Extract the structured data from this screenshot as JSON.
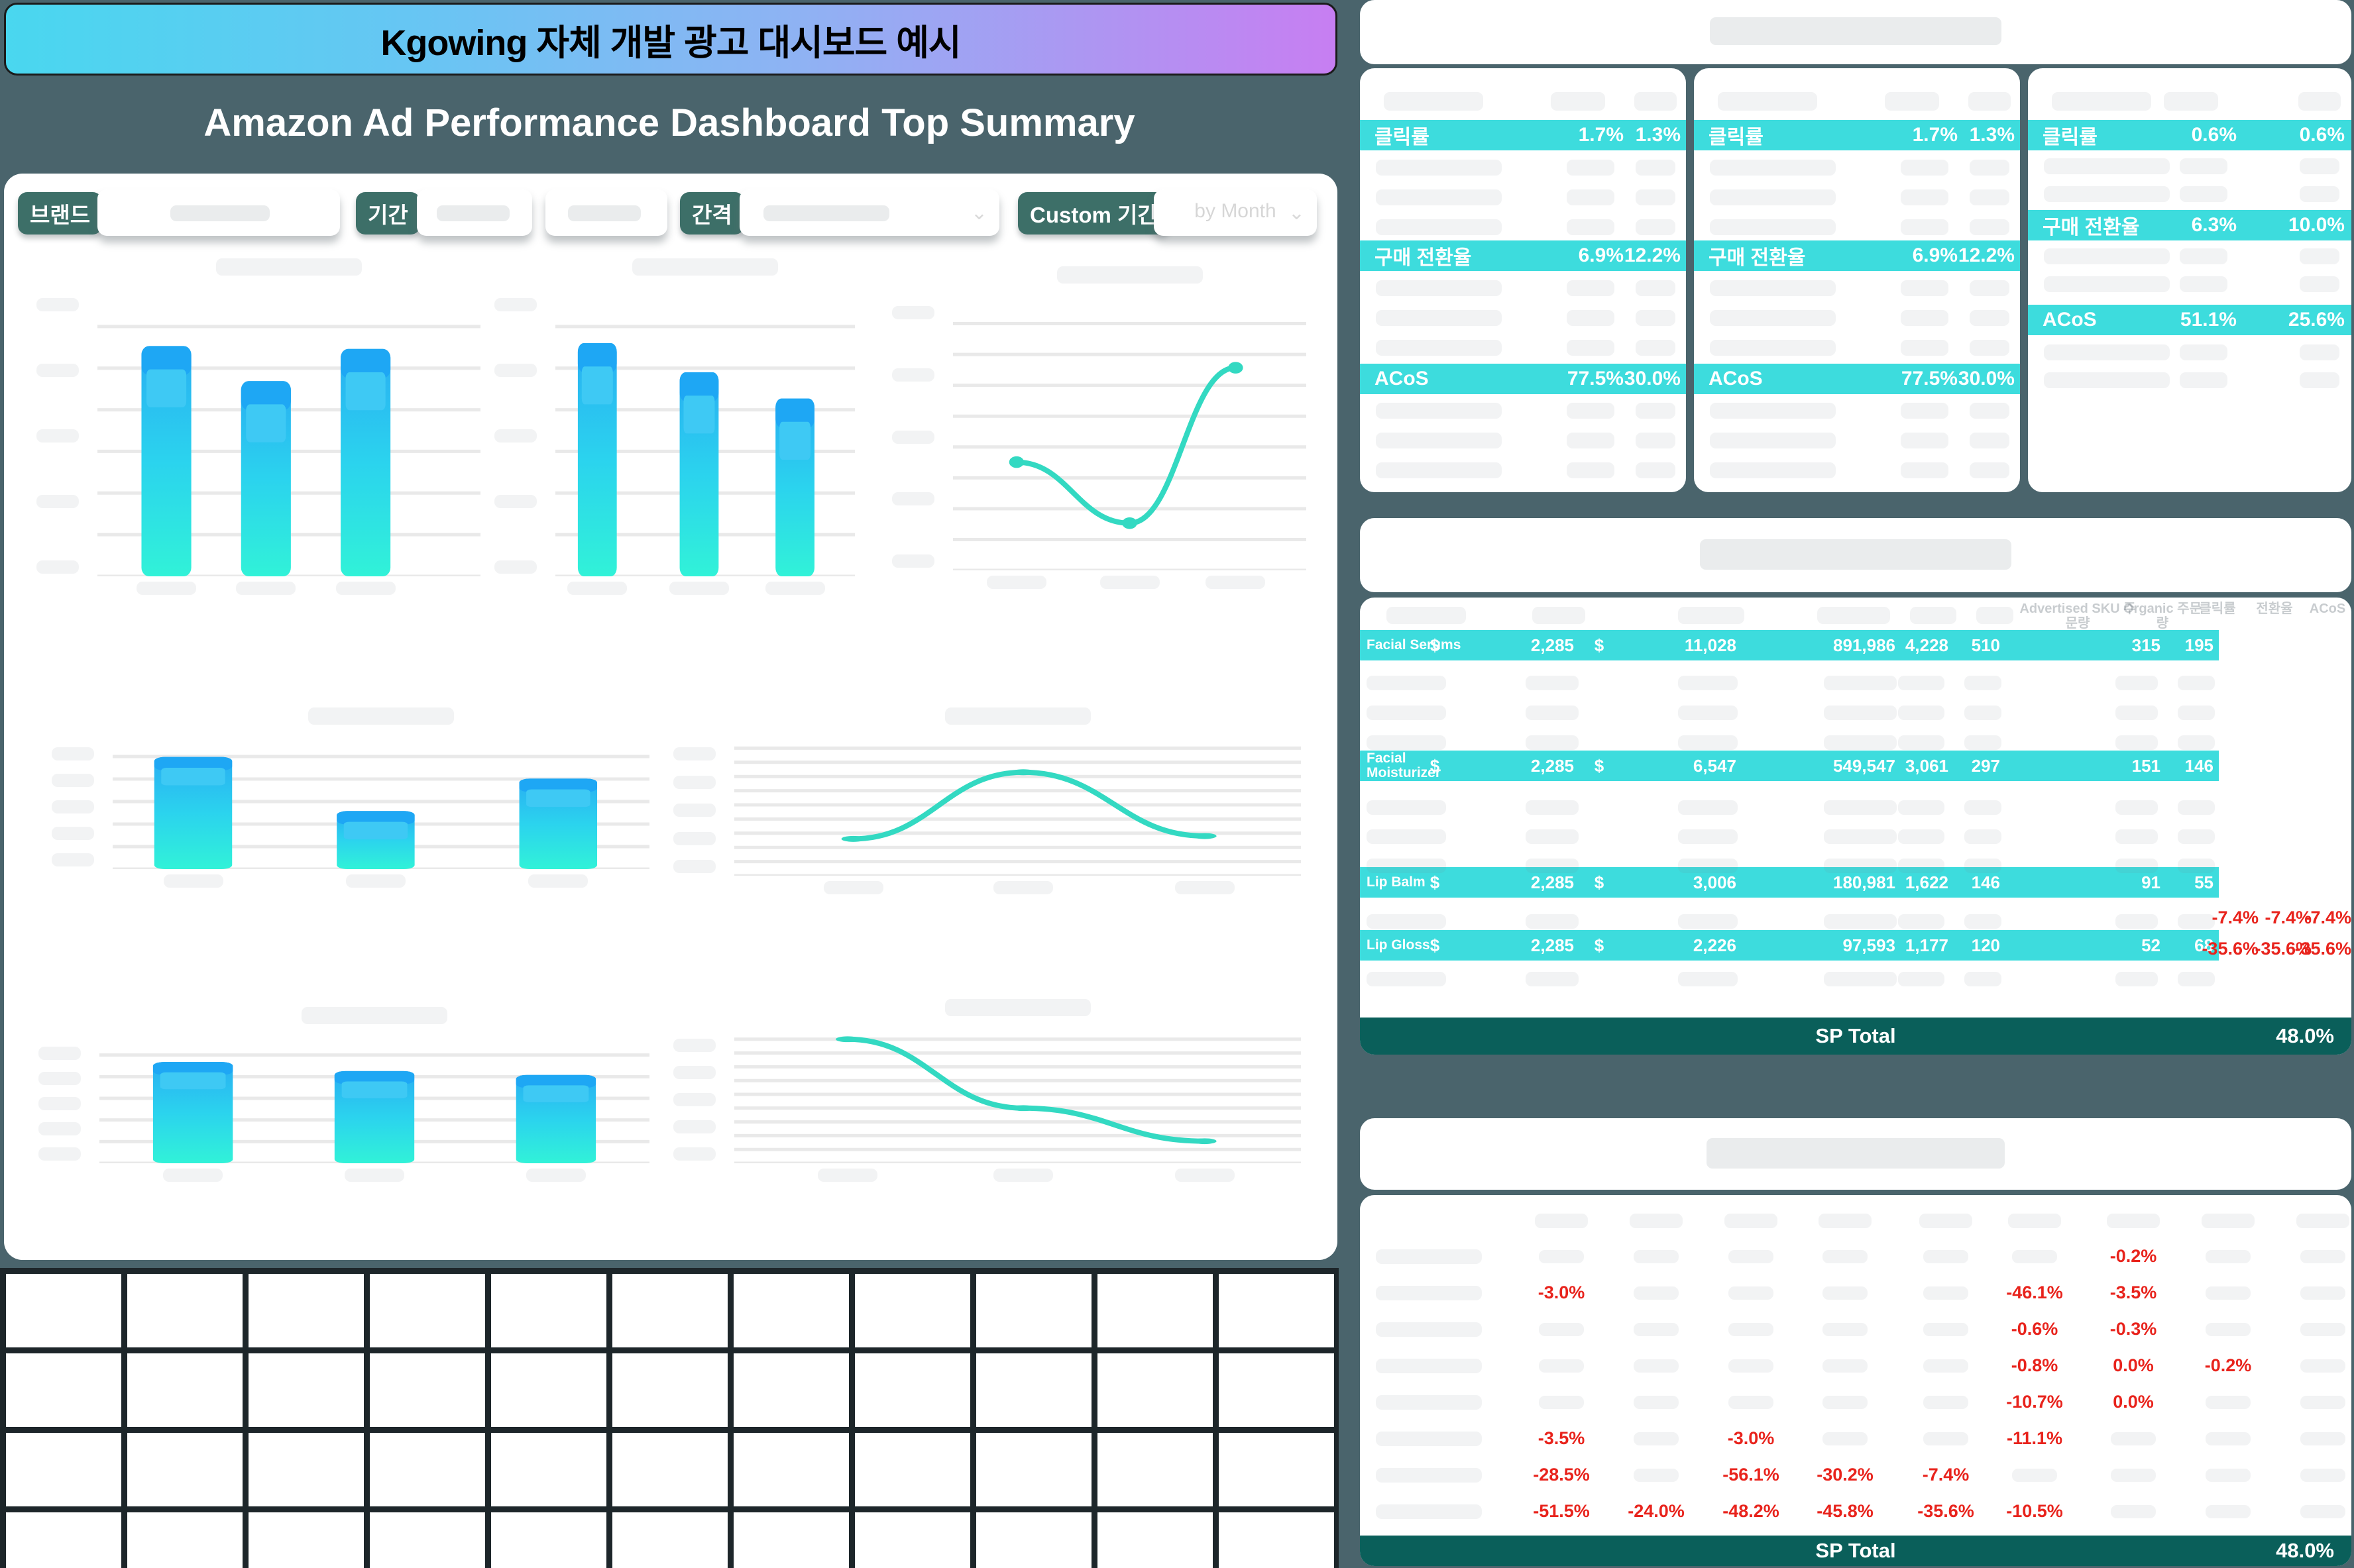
{
  "banner": {
    "title": "Kgowing 자체 개발 광고 대시보드 예시"
  },
  "header": {
    "subtitle": "Amazon Ad Performance Dashboard Top Summary"
  },
  "filters": {
    "brand_label": "브랜드",
    "period_label": "기간",
    "interval_label": "간격",
    "custom_period_label": "Custom 기간",
    "custom_period_value": "by Month"
  },
  "colors": {
    "accent_teal": "#3ddcdd",
    "dark_teal": "#0a5f5a",
    "red": "#e8231c",
    "chip_green": "#3d6f68",
    "bar_top": "#2aaef2",
    "bar_mid": "#2bd3ee",
    "bar_bottom": "#31f2d8",
    "bar_cap": "#1ea7f4",
    "bar_window": "#3ec9f4",
    "line": "#33d9c2",
    "gridline": "#e9e9e9"
  },
  "summary_section": {
    "cards": [
      {
        "metrics": [
          {
            "label": "클릭률",
            "current": "1.7%",
            "benchmark": "1.3%"
          },
          {
            "label": "구매 전환율",
            "current": "6.9%",
            "benchmark": "12.2%"
          },
          {
            "label": "ACoS",
            "current": "77.5%",
            "benchmark": "30.0%"
          }
        ]
      },
      {
        "metrics": [
          {
            "label": "클릭률",
            "current": "1.7%",
            "benchmark": "1.3%"
          },
          {
            "label": "구매 전환율",
            "current": "6.9%",
            "benchmark": "12.2%"
          },
          {
            "label": "ACoS",
            "current": "77.5%",
            "benchmark": "30.0%"
          }
        ]
      },
      {
        "metrics": [
          {
            "label": "클릭률",
            "current": "0.6%",
            "benchmark": "0.6%"
          },
          {
            "label": "구매 전환율",
            "current": "6.3%",
            "benchmark": "10.0%"
          },
          {
            "label": "ACoS",
            "current": "51.1%",
            "benchmark": "25.6%"
          }
        ]
      }
    ]
  },
  "sku_table": {
    "faint_headers": [
      "Advertised SKU 주문량",
      "Organic 주문량",
      "클릭률",
      "전환율",
      "ACoS"
    ],
    "currency": "$",
    "rows": [
      {
        "name": "Facial Serums",
        "spend": "2,285",
        "sales": "11,028",
        "impressions": "891,986",
        "clicks": "4,228",
        "orders": "510",
        "adv_sku_orders": "315",
        "organic_orders": "195"
      },
      {
        "name": "Facial Moisturizer",
        "spend": "2,285",
        "sales": "6,547",
        "impressions": "549,547",
        "clicks": "3,061",
        "orders": "297",
        "adv_sku_orders": "151",
        "organic_orders": "146"
      },
      {
        "name": "Lip Balm",
        "spend": "2,285",
        "sales": "3,006",
        "impressions": "180,981",
        "clicks": "1,622",
        "orders": "146",
        "adv_sku_orders": "91",
        "organic_orders": "55"
      },
      {
        "name": "Lip Gloss",
        "spend": "2,285",
        "sales": "2,226",
        "impressions": "97,593",
        "clicks": "1,177",
        "orders": "120",
        "adv_sku_orders": "52",
        "organic_orders": "68"
      }
    ],
    "red_change_rows": [
      {
        "values": [
          "-7.4%",
          "-7.4%",
          "-7.4%"
        ]
      },
      {
        "values": [
          "-35.6%",
          "-35.6%",
          "-35.6%"
        ]
      }
    ],
    "total_label": "SP Total",
    "total_value": "48.0%"
  },
  "yoy_table": {
    "rows": [
      {
        "cells": {
          "6": "-0.2%"
        }
      },
      {
        "cells": {
          "0": "-3.0%",
          "5": "-46.1%",
          "6": "-3.5%"
        }
      },
      {
        "cells": {
          "5": "-0.6%",
          "6": "-0.3%"
        }
      },
      {
        "cells": {
          "5": "-0.8%",
          "6": "0.0%",
          "7": "-0.2%"
        }
      },
      {
        "cells": {
          "5": "-10.7%",
          "6": "0.0%"
        }
      },
      {
        "cells": {
          "0": "-3.5%",
          "2": "-3.0%",
          "5": "-11.1%"
        }
      },
      {
        "cells": {
          "0": "-28.5%",
          "2": "-56.1%",
          "3": "-30.2%",
          "4": "-7.4%"
        }
      },
      {
        "cells": {
          "0": "-51.5%",
          "1": "-24.0%",
          "2": "-48.2%",
          "3": "-45.8%",
          "4": "-35.6%",
          "5": "-10.5%"
        }
      }
    ],
    "total_label": "SP Total",
    "total_value": "48.0%"
  },
  "chart_data": [
    {
      "id": "bar-top-left",
      "type": "bar",
      "values": [
        79,
        67,
        78
      ],
      "values_unit": "relative-height-percent",
      "categories": [
        "",
        "",
        ""
      ]
    },
    {
      "id": "bar-top-mid",
      "type": "bar",
      "values": [
        80,
        70,
        61
      ],
      "values_unit": "relative-height-percent",
      "categories": [
        "",
        "",
        ""
      ]
    },
    {
      "id": "line-top-right",
      "type": "line",
      "values": [
        39,
        17,
        73
      ],
      "values_unit": "relative-height-percent",
      "x": [
        18,
        50,
        80
      ]
    },
    {
      "id": "bar-mid-left",
      "type": "bar",
      "values": [
        83,
        43,
        67
      ],
      "values_unit": "relative-height-percent",
      "categories": [
        "",
        "",
        ""
      ]
    },
    {
      "id": "line-mid-right",
      "type": "line",
      "values": [
        26,
        73,
        28
      ],
      "values_unit": "relative-height-percent",
      "x": [
        21,
        51,
        83
      ]
    },
    {
      "id": "bar-bottom-left",
      "type": "bar",
      "values": [
        78,
        71,
        68
      ],
      "values_unit": "relative-height-percent",
      "categories": [
        "",
        "",
        ""
      ]
    },
    {
      "id": "line-bottom-right",
      "type": "line",
      "values": [
        90,
        40,
        16
      ],
      "values_unit": "relative-height-percent",
      "x": [
        20,
        51,
        83
      ]
    }
  ]
}
